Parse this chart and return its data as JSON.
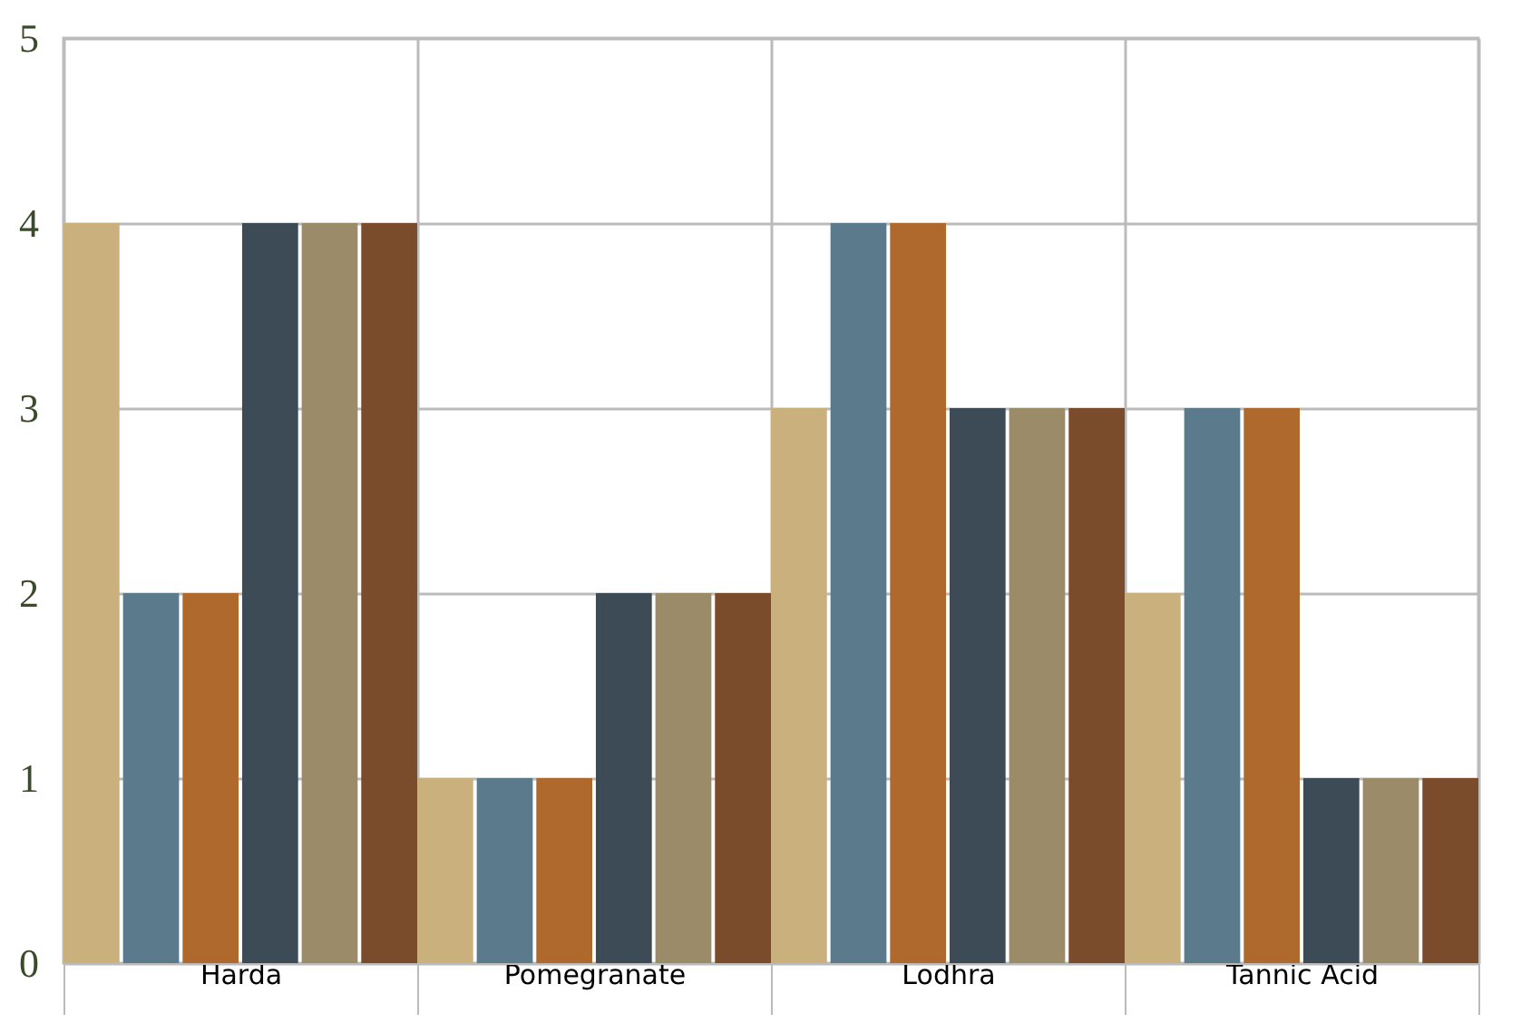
{
  "chart_data": {
    "type": "bar",
    "categories": [
      "Harda",
      "Pomegranate",
      "Lodhra",
      "Tannic Acid"
    ],
    "series": [
      {
        "color": "#c9b07c",
        "values": [
          4,
          1,
          3,
          2
        ]
      },
      {
        "color": "#5b7b8d",
        "values": [
          2,
          1,
          4,
          3
        ]
      },
      {
        "color": "#b0692c",
        "values": [
          2,
          1,
          4,
          3
        ]
      },
      {
        "color": "#3c4b56",
        "values": [
          4,
          2,
          3,
          1
        ]
      },
      {
        "color": "#9c8b69",
        "values": [
          4,
          2,
          3,
          1
        ]
      },
      {
        "color": "#7b4c2c",
        "values": [
          4,
          2,
          3,
          1
        ]
      }
    ],
    "ylim": [
      0,
      5
    ],
    "yticks": [
      0,
      1,
      2,
      3,
      4,
      5
    ],
    "grid": true,
    "legend": false
  }
}
